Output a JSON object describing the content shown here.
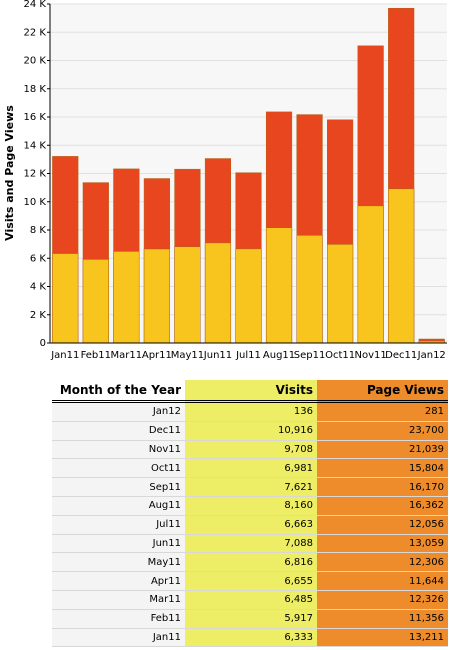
{
  "chart_data": {
    "type": "bar",
    "ylabel": "Visits and Page Views",
    "categories": [
      "Jan11",
      "Feb11",
      "Mar11",
      "Apr11",
      "May11",
      "Jun11",
      "Jul11",
      "Aug11",
      "Sep11",
      "Oct11",
      "Nov11",
      "Dec11",
      "Jan12"
    ],
    "series": [
      {
        "name": "Page Views",
        "color": "#e8461e",
        "values": [
          13211,
          11356,
          12326,
          11644,
          12306,
          13059,
          12056,
          16362,
          16170,
          15804,
          21039,
          23700,
          281
        ]
      },
      {
        "name": "Visits",
        "color": "#f7c51e",
        "values": [
          6333,
          5917,
          6485,
          6655,
          6816,
          7088,
          6663,
          8160,
          7621,
          6981,
          9708,
          10916,
          136
        ]
      }
    ],
    "ylim": [
      0,
      24000
    ],
    "yticks": [
      0,
      {
        "value": 2000,
        "label": "2 K"
      },
      {
        "value": 4000,
        "label": "4 K"
      },
      {
        "value": 6000,
        "label": "6 K"
      },
      {
        "value": 8000,
        "label": "8 K"
      },
      {
        "value": 10000,
        "label": "10 K"
      },
      {
        "value": 12000,
        "label": "12 K"
      },
      {
        "value": 14000,
        "label": "14 K"
      },
      {
        "value": 16000,
        "label": "16 K"
      },
      {
        "value": 18000,
        "label": "18 K"
      },
      {
        "value": 20000,
        "label": "20 K"
      },
      {
        "value": 22000,
        "label": "22 K"
      },
      {
        "value": 24000,
        "label": "24 K"
      }
    ],
    "grid": true
  },
  "table": {
    "header": [
      "Month of the Year",
      "Visits",
      "Page Views"
    ],
    "rows": [
      [
        "Jan12",
        "136",
        "281"
      ],
      [
        "Dec11",
        "10,916",
        "23,700"
      ],
      [
        "Nov11",
        "9,708",
        "21,039"
      ],
      [
        "Oct11",
        "6,981",
        "15,804"
      ],
      [
        "Sep11",
        "7,621",
        "16,170"
      ],
      [
        "Aug11",
        "8,160",
        "16,362"
      ],
      [
        "Jul11",
        "6,663",
        "12,056"
      ],
      [
        "Jun11",
        "7,088",
        "13,059"
      ],
      [
        "May11",
        "6,816",
        "12,306"
      ],
      [
        "Apr11",
        "6,655",
        "11,644"
      ],
      [
        "Mar11",
        "6,485",
        "12,326"
      ],
      [
        "Feb11",
        "5,917",
        "11,356"
      ],
      [
        "Jan11",
        "6,333",
        "13,211"
      ]
    ]
  }
}
